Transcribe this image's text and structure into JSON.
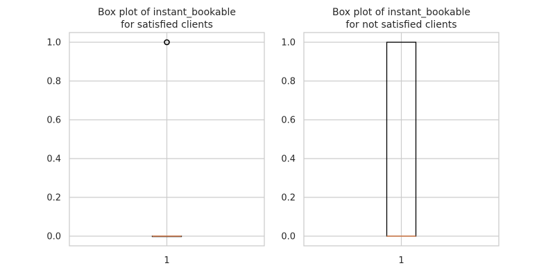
{
  "chart_data": [
    {
      "type": "box",
      "title_lines": [
        "Box plot of instant_bookable",
        "for satisfied clients"
      ],
      "xlabel": "",
      "ylabel": "",
      "x_tick_labels": [
        "1"
      ],
      "y_ticks": [
        "0.0",
        "0.2",
        "0.4",
        "0.6",
        "0.8",
        "1.0"
      ],
      "ylim": [
        -0.05,
        1.05
      ],
      "grid": true,
      "box": {
        "min": 0.0,
        "q1": 0.0,
        "median": 0.0,
        "q3": 0.0,
        "max": 0.0
      },
      "outliers": [
        1.0
      ],
      "colors": {
        "median": "#dd8452",
        "box": "#000000",
        "outlier": "#000000"
      }
    },
    {
      "type": "box",
      "title_lines": [
        "Box plot of instant_bookable",
        "for not satisfied clients"
      ],
      "xlabel": "",
      "ylabel": "",
      "x_tick_labels": [
        "1"
      ],
      "y_ticks": [
        "0.0",
        "0.2",
        "0.4",
        "0.6",
        "0.8",
        "1.0"
      ],
      "ylim": [
        -0.05,
        1.05
      ],
      "grid": true,
      "box": {
        "min": 0.0,
        "q1": 0.0,
        "median": 0.0,
        "q3": 1.0,
        "max": 1.0
      },
      "outliers": [],
      "colors": {
        "median": "#dd8452",
        "box": "#000000",
        "outlier": "#000000"
      }
    }
  ]
}
